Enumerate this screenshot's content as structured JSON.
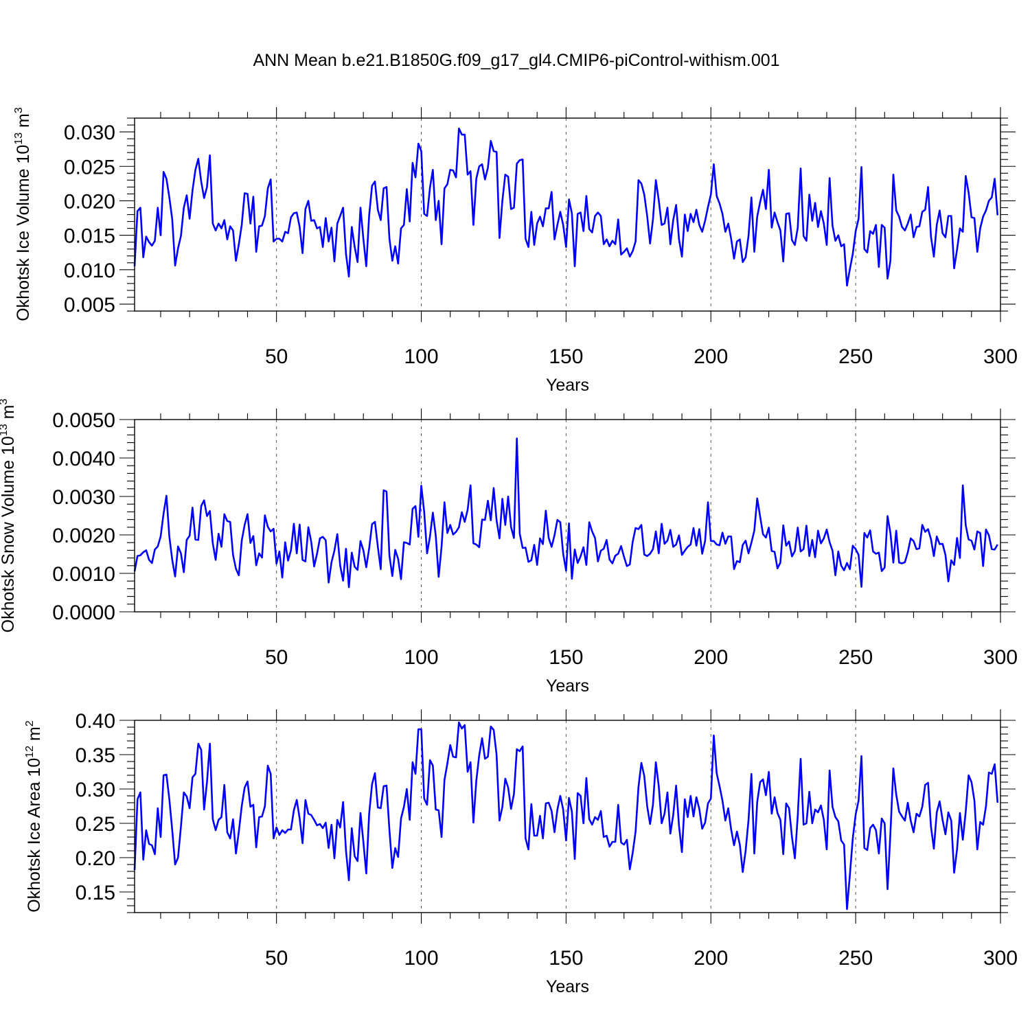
{
  "title": "ANN Mean b.e21.B1850G.f09_g17_gl4.CMIP6-piControl-withism.001",
  "chart_data": [
    {
      "type": "line",
      "name": "ice-volume",
      "ylabel": "Okhotsk Ice Volume 10",
      "ylabel_sup": "13",
      "ylabel_unit": " m",
      "ylabel_unit_sup": "3",
      "xlabel": "Years",
      "xlim": [
        1,
        300
      ],
      "ylim": [
        0.004,
        0.032
      ],
      "xticks": [
        50,
        100,
        150,
        200,
        250,
        300
      ],
      "xtick_labels": [
        "50",
        "100",
        "150",
        "200",
        "250",
        "300"
      ],
      "yticks": [
        0.005,
        0.01,
        0.015,
        0.02,
        0.025,
        0.03
      ],
      "ytick_labels": [
        "0.005",
        "0.010",
        "0.015",
        "0.020",
        "0.025",
        "0.030"
      ],
      "grid_x": true,
      "color": "#0000ff",
      "x_start": 1,
      "values": [
        0.0105,
        0.0185,
        0.019,
        0.0118,
        0.0148,
        0.014,
        0.0135,
        0.0142,
        0.019,
        0.015,
        0.0242,
        0.0232,
        0.0205,
        0.0173,
        0.0106,
        0.0131,
        0.0149,
        0.019,
        0.0208,
        0.0174,
        0.0215,
        0.0245,
        0.0261,
        0.0228,
        0.0204,
        0.022,
        0.0266,
        0.0167,
        0.0157,
        0.0167,
        0.016,
        0.0172,
        0.0144,
        0.0163,
        0.0157,
        0.0113,
        0.0137,
        0.0165,
        0.0211,
        0.021,
        0.0167,
        0.0206,
        0.0126,
        0.0163,
        0.0164,
        0.0178,
        0.0218,
        0.0231,
        0.0141,
        0.0145,
        0.0145,
        0.0141,
        0.0155,
        0.0153,
        0.0176,
        0.0182,
        0.0183,
        0.0162,
        0.0124,
        0.0188,
        0.02,
        0.0171,
        0.0172,
        0.016,
        0.0162,
        0.0133,
        0.0175,
        0.0141,
        0.0161,
        0.0112,
        0.0167,
        0.0178,
        0.019,
        0.0123,
        0.009,
        0.0162,
        0.0133,
        0.0111,
        0.019,
        0.0145,
        0.0105,
        0.0179,
        0.0222,
        0.0228,
        0.0187,
        0.0172,
        0.0218,
        0.022,
        0.0145,
        0.0113,
        0.0134,
        0.0109,
        0.016,
        0.0165,
        0.0217,
        0.017,
        0.0255,
        0.0234,
        0.0283,
        0.0272,
        0.0181,
        0.0178,
        0.0219,
        0.0245,
        0.0172,
        0.02,
        0.0137,
        0.0218,
        0.0224,
        0.0245,
        0.0244,
        0.0234,
        0.0305,
        0.0296,
        0.0296,
        0.0238,
        0.0243,
        0.0165,
        0.0232,
        0.025,
        0.0253,
        0.0231,
        0.0248,
        0.0287,
        0.0272,
        0.0271,
        0.0146,
        0.02,
        0.0238,
        0.0235,
        0.0188,
        0.019,
        0.0254,
        0.0259,
        0.026,
        0.0145,
        0.0133,
        0.0184,
        0.0136,
        0.0167,
        0.0177,
        0.0163,
        0.0189,
        0.0189,
        0.0213,
        0.0144,
        0.0165,
        0.0184,
        0.0165,
        0.0133,
        0.0202,
        0.0182,
        0.0105,
        0.0181,
        0.0183,
        0.0156,
        0.0207,
        0.0159,
        0.0154,
        0.0178,
        0.0183,
        0.0178,
        0.0137,
        0.0144,
        0.0134,
        0.0142,
        0.0137,
        0.0173,
        0.0122,
        0.0126,
        0.0131,
        0.0119,
        0.0127,
        0.0141,
        0.023,
        0.0225,
        0.0209,
        0.0178,
        0.0138,
        0.0173,
        0.023,
        0.0201,
        0.0165,
        0.0167,
        0.019,
        0.0137,
        0.0172,
        0.0194,
        0.0144,
        0.0119,
        0.018,
        0.0156,
        0.0181,
        0.0169,
        0.0187,
        0.0165,
        0.0155,
        0.0171,
        0.0191,
        0.0209,
        0.0253,
        0.0207,
        0.0196,
        0.0181,
        0.0155,
        0.0167,
        0.0145,
        0.0116,
        0.0141,
        0.0144,
        0.0111,
        0.0118,
        0.0149,
        0.0205,
        0.0126,
        0.0177,
        0.0198,
        0.0216,
        0.0188,
        0.0245,
        0.0161,
        0.0183,
        0.0169,
        0.0157,
        0.0112,
        0.0181,
        0.0182,
        0.0143,
        0.0136,
        0.0161,
        0.0247,
        0.0149,
        0.0142,
        0.0209,
        0.0171,
        0.0197,
        0.0162,
        0.0185,
        0.0167,
        0.0136,
        0.0233,
        0.0164,
        0.0142,
        0.015,
        0.0134,
        0.0137,
        0.0077,
        0.0101,
        0.0123,
        0.0156,
        0.0174,
        0.0249,
        0.013,
        0.0125,
        0.0156,
        0.0152,
        0.0165,
        0.0104,
        0.0165,
        0.0161,
        0.0087,
        0.0113,
        0.0238,
        0.0186,
        0.0177,
        0.0162,
        0.0157,
        0.0167,
        0.018,
        0.0147,
        0.0162,
        0.0163,
        0.0184,
        0.0187,
        0.022,
        0.0148,
        0.0119,
        0.0165,
        0.0186,
        0.0153,
        0.0147,
        0.0178,
        0.0178,
        0.0102,
        0.0129,
        0.016,
        0.0155,
        0.0236,
        0.0212,
        0.0176,
        0.0175,
        0.0126,
        0.016,
        0.0177,
        0.0186,
        0.02,
        0.0205,
        0.0232,
        0.0179
      ]
    },
    {
      "type": "line",
      "name": "snow-volume",
      "ylabel": "Okhotsk Snow Volume 10",
      "ylabel_sup": "13",
      "ylabel_unit": " m",
      "ylabel_unit_sup": "3",
      "xlabel": "Years",
      "xlim": [
        1,
        300
      ],
      "ylim": [
        0.0,
        0.005
      ],
      "xticks": [
        50,
        100,
        150,
        200,
        250,
        300
      ],
      "xtick_labels": [
        "50",
        "100",
        "150",
        "200",
        "250",
        "300"
      ],
      "yticks": [
        0.0,
        0.001,
        0.002,
        0.003,
        0.004,
        0.005
      ],
      "ytick_labels": [
        "0.0000",
        "0.0010",
        "0.0020",
        "0.0030",
        "0.0040",
        "0.0050"
      ],
      "grid_x": true,
      "color": "#0000ff",
      "x_start": 1,
      "values": [
        0.00105,
        0.00145,
        0.00147,
        0.00155,
        0.0016,
        0.00135,
        0.00127,
        0.00162,
        0.0017,
        0.00196,
        0.00255,
        0.00302,
        0.00196,
        0.00135,
        0.00092,
        0.0017,
        0.00152,
        0.00103,
        0.00187,
        0.00198,
        0.00271,
        0.00188,
        0.00187,
        0.00275,
        0.0029,
        0.00249,
        0.00262,
        0.00178,
        0.00135,
        0.00203,
        0.00169,
        0.00254,
        0.00236,
        0.00234,
        0.00148,
        0.00112,
        0.00095,
        0.00185,
        0.00226,
        0.00254,
        0.00179,
        0.00197,
        0.00121,
        0.00152,
        0.00141,
        0.00251,
        0.00221,
        0.00209,
        0.00216,
        0.00125,
        0.00157,
        0.00089,
        0.00181,
        0.00133,
        0.0016,
        0.00229,
        0.00152,
        0.00227,
        0.00135,
        0.00131,
        0.0022,
        0.00182,
        0.00118,
        0.00151,
        0.00191,
        0.00195,
        0.00186,
        0.00076,
        0.00129,
        0.00159,
        0.00202,
        0.0012,
        0.00081,
        0.00164,
        0.00064,
        0.00154,
        0.00117,
        0.00109,
        0.00184,
        0.0016,
        0.00116,
        0.00165,
        0.00228,
        0.00234,
        0.00169,
        0.00111,
        0.00316,
        0.00313,
        0.00146,
        0.00093,
        0.00161,
        0.00138,
        0.00085,
        0.00181,
        0.00179,
        0.00175,
        0.00268,
        0.00275,
        0.00195,
        0.00328,
        0.0026,
        0.00152,
        0.00196,
        0.00258,
        0.00198,
        0.00091,
        0.00169,
        0.00285,
        0.00205,
        0.00226,
        0.00201,
        0.00208,
        0.0022,
        0.00259,
        0.00234,
        0.00265,
        0.00329,
        0.00178,
        0.00175,
        0.00168,
        0.0024,
        0.00239,
        0.00289,
        0.00238,
        0.00322,
        0.00238,
        0.00191,
        0.00294,
        0.00226,
        0.003,
        0.0022,
        0.00192,
        0.00451,
        0.00203,
        0.00166,
        0.00167,
        0.0013,
        0.00134,
        0.00174,
        0.00122,
        0.00191,
        0.00176,
        0.00263,
        0.00192,
        0.00169,
        0.00199,
        0.00239,
        0.00233,
        0.00151,
        0.00107,
        0.0023,
        0.00086,
        0.00162,
        0.00127,
        0.00144,
        0.00168,
        0.00122,
        0.00233,
        0.00209,
        0.00192,
        0.00131,
        0.00159,
        0.00164,
        0.00187,
        0.00136,
        0.00126,
        0.00146,
        0.00151,
        0.00171,
        0.00143,
        0.00119,
        0.00123,
        0.00182,
        0.00218,
        0.00215,
        0.00226,
        0.00149,
        0.00145,
        0.00151,
        0.00163,
        0.00209,
        0.00152,
        0.00229,
        0.00177,
        0.00185,
        0.00213,
        0.00169,
        0.00175,
        0.00199,
        0.00148,
        0.00159,
        0.00169,
        0.00175,
        0.00218,
        0.00172,
        0.00215,
        0.00151,
        0.00184,
        0.00285,
        0.00184,
        0.00184,
        0.00175,
        0.00173,
        0.00206,
        0.00177,
        0.00196,
        0.00196,
        0.00111,
        0.00132,
        0.00129,
        0.00174,
        0.00185,
        0.00152,
        0.0018,
        0.00211,
        0.00295,
        0.00248,
        0.00202,
        0.00193,
        0.00219,
        0.00158,
        0.00156,
        0.00113,
        0.00128,
        0.00225,
        0.00172,
        0.00183,
        0.00144,
        0.00158,
        0.00219,
        0.00157,
        0.00163,
        0.00224,
        0.00145,
        0.00187,
        0.00142,
        0.00211,
        0.00178,
        0.00191,
        0.00214,
        0.00181,
        0.00159,
        0.00095,
        0.00157,
        0.0012,
        0.00108,
        0.00127,
        0.00111,
        0.00172,
        0.00163,
        0.00148,
        0.00065,
        0.00205,
        0.00193,
        0.00212,
        0.00157,
        0.00151,
        0.00154,
        0.00106,
        0.00115,
        0.00249,
        0.00205,
        0.00128,
        0.00211,
        0.00128,
        0.00126,
        0.00129,
        0.00155,
        0.00191,
        0.00184,
        0.00163,
        0.00165,
        0.00226,
        0.00208,
        0.00215,
        0.00189,
        0.00145,
        0.00196,
        0.00176,
        0.00177,
        0.00148,
        0.00079,
        0.00134,
        0.00122,
        0.00192,
        0.0014,
        0.00329,
        0.00225,
        0.00188,
        0.00185,
        0.00162,
        0.00209,
        0.00205,
        0.00119,
        0.00214,
        0.00199,
        0.00163,
        0.00162,
        0.00175
      ]
    },
    {
      "type": "line",
      "name": "ice-area",
      "ylabel": "Okhotsk Ice Area 10",
      "ylabel_sup": "12",
      "ylabel_unit": " m",
      "ylabel_unit_sup": "2",
      "xlabel": "Years",
      "xlim": [
        1,
        300
      ],
      "ylim": [
        0.12,
        0.4
      ],
      "xticks": [
        50,
        100,
        150,
        200,
        250,
        300
      ],
      "xtick_labels": [
        "50",
        "100",
        "150",
        "200",
        "250",
        "300"
      ],
      "yticks": [
        0.15,
        0.2,
        0.25,
        0.3,
        0.35,
        0.4
      ],
      "ytick_labels": [
        "0.15",
        "0.20",
        "0.25",
        "0.30",
        "0.35",
        "0.40"
      ],
      "grid_x": true,
      "color": "#0000ff",
      "x_start": 1,
      "values": [
        0.182,
        0.285,
        0.295,
        0.197,
        0.24,
        0.22,
        0.218,
        0.205,
        0.272,
        0.23,
        0.32,
        0.321,
        0.285,
        0.24,
        0.19,
        0.2,
        0.245,
        0.295,
        0.289,
        0.272,
        0.317,
        0.322,
        0.366,
        0.357,
        0.27,
        0.31,
        0.366,
        0.256,
        0.24,
        0.255,
        0.259,
        0.306,
        0.237,
        0.228,
        0.256,
        0.206,
        0.238,
        0.275,
        0.302,
        0.311,
        0.274,
        0.277,
        0.215,
        0.259,
        0.26,
        0.275,
        0.334,
        0.322,
        0.228,
        0.244,
        0.233,
        0.24,
        0.236,
        0.241,
        0.241,
        0.269,
        0.284,
        0.257,
        0.221,
        0.284,
        0.264,
        0.262,
        0.255,
        0.247,
        0.249,
        0.243,
        0.251,
        0.214,
        0.248,
        0.199,
        0.255,
        0.244,
        0.281,
        0.21,
        0.167,
        0.243,
        0.202,
        0.195,
        0.265,
        0.223,
        0.177,
        0.264,
        0.307,
        0.323,
        0.273,
        0.272,
        0.304,
        0.305,
        0.24,
        0.185,
        0.214,
        0.201,
        0.257,
        0.274,
        0.3,
        0.255,
        0.339,
        0.322,
        0.387,
        0.387,
        0.286,
        0.277,
        0.342,
        0.334,
        0.27,
        0.269,
        0.23,
        0.313,
        0.337,
        0.364,
        0.347,
        0.346,
        0.397,
        0.388,
        0.393,
        0.325,
        0.339,
        0.251,
        0.312,
        0.349,
        0.374,
        0.344,
        0.347,
        0.391,
        0.386,
        0.35,
        0.254,
        0.274,
        0.315,
        0.302,
        0.271,
        0.293,
        0.358,
        0.355,
        0.362,
        0.228,
        0.212,
        0.278,
        0.232,
        0.232,
        0.261,
        0.228,
        0.279,
        0.28,
        0.268,
        0.237,
        0.27,
        0.29,
        0.27,
        0.225,
        0.287,
        0.267,
        0.198,
        0.294,
        0.29,
        0.25,
        0.316,
        0.256,
        0.248,
        0.259,
        0.255,
        0.268,
        0.23,
        0.232,
        0.216,
        0.223,
        0.223,
        0.277,
        0.222,
        0.219,
        0.226,
        0.183,
        0.207,
        0.238,
        0.303,
        0.338,
        0.319,
        0.275,
        0.249,
        0.277,
        0.339,
        0.304,
        0.25,
        0.264,
        0.295,
        0.235,
        0.262,
        0.305,
        0.246,
        0.208,
        0.285,
        0.259,
        0.29,
        0.26,
        0.288,
        0.271,
        0.242,
        0.251,
        0.279,
        0.286,
        0.378,
        0.323,
        0.304,
        0.283,
        0.254,
        0.272,
        0.241,
        0.218,
        0.238,
        0.219,
        0.179,
        0.21,
        0.255,
        0.322,
        0.206,
        0.281,
        0.31,
        0.314,
        0.291,
        0.325,
        0.264,
        0.288,
        0.265,
        0.255,
        0.205,
        0.279,
        0.272,
        0.23,
        0.199,
        0.261,
        0.344,
        0.248,
        0.25,
        0.296,
        0.25,
        0.27,
        0.266,
        0.276,
        0.255,
        0.212,
        0.327,
        0.274,
        0.259,
        0.253,
        0.225,
        0.219,
        0.125,
        0.175,
        0.228,
        0.263,
        0.283,
        0.348,
        0.214,
        0.211,
        0.243,
        0.248,
        0.24,
        0.206,
        0.257,
        0.25,
        0.154,
        0.236,
        0.33,
        0.292,
        0.267,
        0.26,
        0.254,
        0.28,
        0.254,
        0.237,
        0.264,
        0.26,
        0.274,
        0.306,
        0.309,
        0.245,
        0.213,
        0.266,
        0.282,
        0.255,
        0.234,
        0.266,
        0.254,
        0.178,
        0.212,
        0.265,
        0.226,
        0.267,
        0.32,
        0.31,
        0.283,
        0.212,
        0.252,
        0.248,
        0.275,
        0.324,
        0.322,
        0.336,
        0.28
      ]
    }
  ]
}
